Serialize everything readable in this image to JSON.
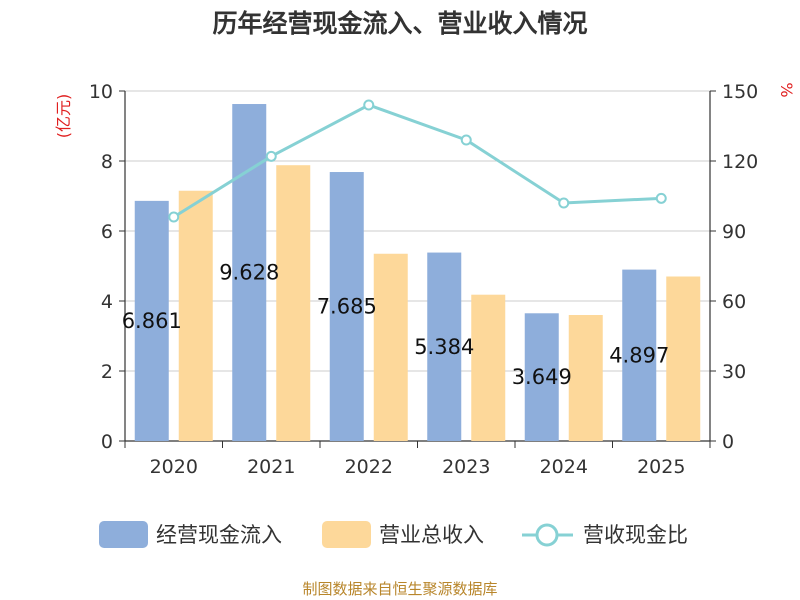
{
  "chart_data": {
    "type": "bar",
    "title": "历年经营现金流入、营业收入情况",
    "categories": [
      "2020",
      "2021",
      "2022",
      "2023",
      "2024",
      "2025"
    ],
    "left_axis": {
      "unit_label": "(亿元)",
      "range": [
        0,
        10
      ],
      "ticks": [
        "0",
        "2",
        "4",
        "6",
        "8",
        "10"
      ]
    },
    "right_axis": {
      "unit_label": "%",
      "range": [
        0,
        150
      ],
      "ticks": [
        "0",
        "30",
        "60",
        "90",
        "120",
        "150"
      ]
    },
    "grid": true,
    "legend_position": "bottom",
    "series": [
      {
        "name": "经营现金流入",
        "kind": "bar",
        "axis": "left",
        "color": "#8eaedb",
        "values": [
          6.861,
          9.628,
          7.685,
          5.384,
          3.649,
          4.897
        ],
        "labels": [
          "6.861",
          "9.628",
          "7.685",
          "5.384",
          "3.649",
          "4.897"
        ]
      },
      {
        "name": "营业总收入",
        "kind": "bar",
        "axis": "left",
        "color": "#fdd89a",
        "values": [
          7.15,
          7.88,
          5.35,
          4.18,
          3.6,
          4.7
        ]
      },
      {
        "name": "营收现金比",
        "kind": "line",
        "axis": "right",
        "color": "#86d1d4",
        "values": [
          96,
          122,
          144,
          129,
          102,
          104
        ]
      }
    ],
    "source": "制图数据来自恒生聚源数据库"
  }
}
